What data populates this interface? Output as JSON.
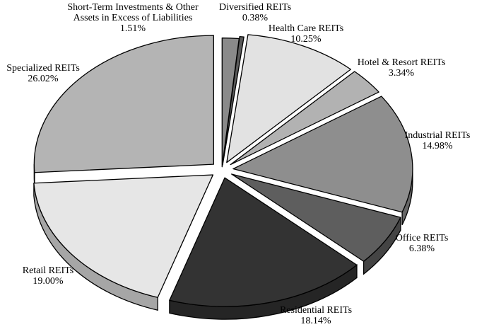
{
  "chart_data": {
    "type": "pie",
    "style": "3d-exploded",
    "slices": [
      {
        "name": "Short-Term Investments & Other Assets in Excess of Liabilities",
        "label_lines": [
          "Short-Term Investments & Other",
          "Assets in Excess of Liabilities"
        ],
        "value": 1.51,
        "value_label": "1.51%",
        "color": "#8a8a8a"
      },
      {
        "name": "Diversified REITs",
        "label_lines": [
          "Diversified REITs"
        ],
        "value": 0.38,
        "value_label": "0.38%",
        "color": "#5a5a5a"
      },
      {
        "name": "Health Care REITs",
        "label_lines": [
          "Health Care REITs"
        ],
        "value": 10.25,
        "value_label": "10.25%",
        "color": "#e2e2e2"
      },
      {
        "name": "Hotel & Resort REITs",
        "label_lines": [
          "Hotel & Resort REITs"
        ],
        "value": 3.34,
        "value_label": "3.34%",
        "color": "#b2b2b2"
      },
      {
        "name": "Industrial REITs",
        "label_lines": [
          "Industrial REITs"
        ],
        "value": 14.98,
        "value_label": "14.98%",
        "color": "#8e8e8e"
      },
      {
        "name": "Office REITs",
        "label_lines": [
          "Office REITs"
        ],
        "value": 6.38,
        "value_label": "6.38%",
        "color": "#5e5e5e"
      },
      {
        "name": "Residential REITs",
        "label_lines": [
          "Residential REITs"
        ],
        "value": 18.14,
        "value_label": "18.14%",
        "color": "#333333"
      },
      {
        "name": "Retail REITs",
        "label_lines": [
          "Retail REITs"
        ],
        "value": 19.0,
        "value_label": "19.00%",
        "color": "#e6e6e6"
      },
      {
        "name": "Specialized REITs",
        "label_lines": [
          "Specialized REITs"
        ],
        "value": 26.02,
        "value_label": "26.02%",
        "color": "#b4b4b4"
      }
    ]
  }
}
